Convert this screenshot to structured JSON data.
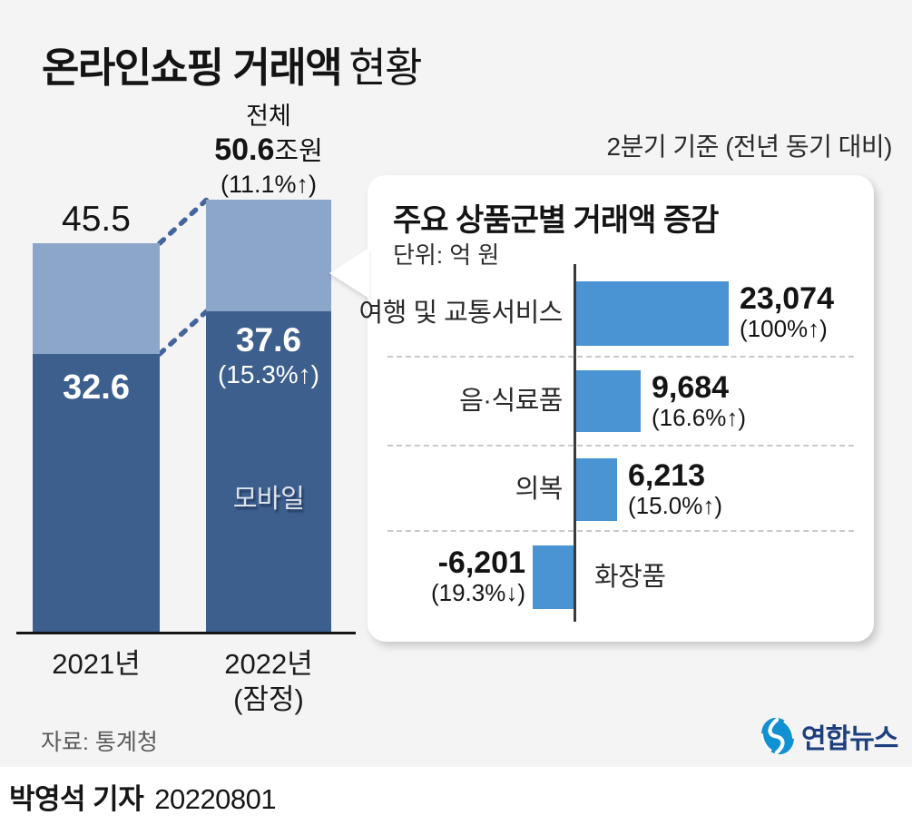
{
  "page": {
    "title_strong": "온라인쇼핑 거래액",
    "title_light": "현황",
    "period_note": "2분기 기준 (전년 동기 대비)"
  },
  "left_chart": {
    "bar1_total": "45.5",
    "bar1_mobile": "32.6",
    "bar2_header_label": "전체",
    "bar2_total_num": "50.6",
    "bar2_total_unit": "조원",
    "bar2_total_change": "(11.1%↑)",
    "bar2_mobile_num": "37.6",
    "bar2_mobile_change": "(15.3%↑)",
    "mobile_tag": "모바일",
    "x1": "2021년",
    "x2": "2022년",
    "x2_sub": "(잠정)"
  },
  "panel": {
    "title": "주요 상품군별 거래액 증감",
    "unit": "단위: 억 원",
    "rows": [
      {
        "label": "여행 및 교통서비스",
        "value": "23,074",
        "change": "(100%↑)"
      },
      {
        "label": "음·식료품",
        "value": "9,684",
        "change": "(16.6%↑)"
      },
      {
        "label": "의복",
        "value": "6,213",
        "change": "(15.0%↑)"
      },
      {
        "label": "화장품",
        "value": "-6,201",
        "change": "(19.3%↓)"
      }
    ]
  },
  "footer": {
    "source": "자료: 통계청",
    "logo_text": "연합뉴스",
    "byline_strong": "박영석 기자",
    "byline_date": "20220801"
  },
  "colors": {
    "background": "#f4f4f5",
    "bar_light_blue": "#8ca6ca",
    "bar_dark_blue": "#3d5f8e",
    "panel_bar_blue": "#4a94d4",
    "connector_blue": "#44659c",
    "logo_blue": "#1191d2",
    "logo_navy": "#1d3f7e"
  },
  "chart_data": [
    {
      "type": "bar",
      "subtype": "stacked-vertical",
      "title": "온라인쇼핑 거래액 현황",
      "unit": "조원",
      "categories": [
        "2021년",
        "2022년 (잠정)"
      ],
      "series": [
        {
          "name": "모바일",
          "values": [
            32.6,
            37.6
          ]
        }
      ],
      "totals": [
        45.5,
        50.6
      ],
      "annotations": {
        "total_2022": "전체 50.6조원 (11.1%↑)",
        "mobile_2022": "37.6 (15.3%↑)"
      },
      "legend_position": "inside-bar",
      "grid": false
    },
    {
      "type": "bar",
      "subtype": "horizontal-diverging",
      "title": "주요 상품군별 거래액 증감",
      "unit": "억 원",
      "note": "2분기 기준 (전년 동기 대비)",
      "categories": [
        "여행 및 교통서비스",
        "음·식료품",
        "의복",
        "화장품"
      ],
      "values": [
        23074,
        9684,
        6213,
        -6201
      ],
      "changes": [
        "100%↑",
        "16.6%↑",
        "15.0%↑",
        "19.3%↓"
      ],
      "xlim": [
        -7000,
        24000
      ],
      "grid": false
    }
  ]
}
